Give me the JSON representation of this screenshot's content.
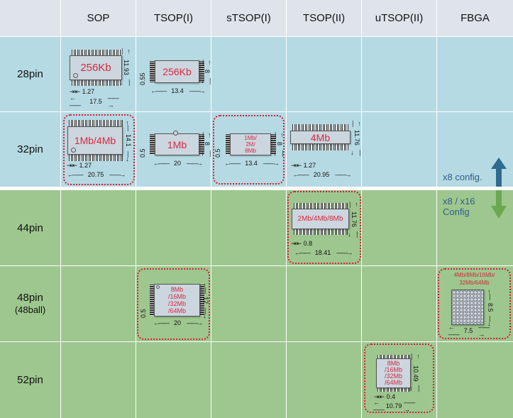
{
  "columns": [
    "SOP",
    "TSOP(I)",
    "sTSOP(I)",
    "TSOP(II)",
    "uTSOP(II)",
    "FBGA"
  ],
  "rows": [
    {
      "label": "28pin",
      "sub": ""
    },
    {
      "label": "32pin",
      "sub": ""
    },
    {
      "label": "44pin",
      "sub": ""
    },
    {
      "label": "48pin",
      "sub": "(48ball)"
    },
    {
      "label": "52pin",
      "sub": ""
    }
  ],
  "chips": {
    "sop28": {
      "label": "256Kb",
      "height": "11.93",
      "pitch": "1.27",
      "width": "17.5"
    },
    "tsop1_28": {
      "label": "256Kb",
      "height": "8",
      "pitch": "0.55",
      "width": "13.4"
    },
    "sop32": {
      "label": "1Mb/4Mb",
      "height": "14.1",
      "pitch": "1.27",
      "width": "20.75"
    },
    "tsop1_32": {
      "label": "1Mb",
      "height": "8",
      "pitch": "0.5",
      "width": "20"
    },
    "stsop1_32": {
      "label": [
        "1Mb/",
        "2M/",
        "8Mb"
      ],
      "height": "8",
      "pitch": "0.5",
      "width": "13.4"
    },
    "tsop2_32": {
      "label": "4Mb",
      "height": "11.76",
      "pitch": "1.27",
      "width": "20.95"
    },
    "tsop2_44": {
      "label": "2Mb/4Mb/8Mb",
      "height": "11.76",
      "pitch": "0.8",
      "width": "18.41"
    },
    "tsop1_48": {
      "label": [
        "8Mb",
        "/16Mb",
        "/32Mb",
        "/64Mb"
      ],
      "height": "12",
      "pitch": "0.5",
      "width": "20"
    },
    "fbga48": {
      "label": [
        "4Mb/8Mb/16Mb/",
        "32Mb/64Mb"
      ],
      "height": "8.5",
      "width": "7.5"
    },
    "utsop2_52": {
      "label": [
        "8Mb",
        "/16Mb",
        "/32Mb",
        "/64Mb"
      ],
      "height": "10.49",
      "pitch": "0.4",
      "width": "10.79"
    }
  },
  "legend": {
    "x8": "x8 config.",
    "x8x16": [
      "x8 / x16",
      "Config"
    ],
    "up_color": "#2e6b8f",
    "down_color": "#6aa84f"
  },
  "colors": {
    "x8_rows": "#b6dae3",
    "x8x16_rows": "#9dc78e",
    "highlight": "#d4203a",
    "chip_text": "#d42a40"
  }
}
